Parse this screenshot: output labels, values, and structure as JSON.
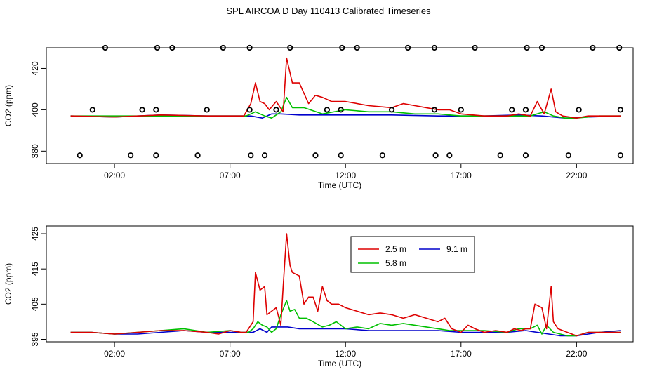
{
  "title": "SPL AIRCOA D  Day 110413  Calibrated Timeseries",
  "colors": {
    "2.5 m": "#dd0000",
    "5.8 m": "#00c000",
    "9.1 m": "#0000cc",
    "markers": "#000000"
  },
  "chart_data": [
    {
      "type": "line",
      "name": "top-panel",
      "xlabel": "Time (UTC)",
      "ylabel": "CO2 (ppm)",
      "x_ticks": [
        "02:00",
        "07:00",
        "12:00",
        "17:00",
        "22:00"
      ],
      "x_tick_hours": [
        2,
        7,
        12,
        17,
        22
      ],
      "xlim": [
        -0.95,
        24.45
      ],
      "y_ticks": [
        380,
        400,
        420
      ],
      "ylim": [
        374,
        430
      ],
      "grid": false,
      "series": [
        {
          "name": "2.5 m",
          "color": "#dd0000",
          "x": [
            0.1,
            2.0,
            4.0,
            6.0,
            7.0,
            7.6,
            7.9,
            8.1,
            8.3,
            8.5,
            8.7,
            9.0,
            9.3,
            9.45,
            9.7,
            10.0,
            10.4,
            10.7,
            11.0,
            11.4,
            12.0,
            13.0,
            14.0,
            14.5,
            15.0,
            15.5,
            16.0,
            16.5,
            17.0,
            18.0,
            19.0,
            19.5,
            20.0,
            20.3,
            20.6,
            20.9,
            21.1,
            21.4,
            22.0,
            22.5,
            23.0,
            23.9
          ],
          "y": [
            397,
            396.5,
            397.5,
            397,
            397,
            397,
            403,
            413,
            404,
            403,
            400,
            404,
            399,
            425,
            413,
            413,
            403,
            407,
            406,
            404,
            404,
            402,
            401,
            403,
            402,
            401,
            400,
            400,
            398,
            397,
            397,
            398,
            397,
            404,
            398,
            410,
            399,
            397,
            396,
            397,
            397,
            397
          ]
        },
        {
          "name": "5.8 m",
          "color": "#00c000",
          "x": [
            0.1,
            3.0,
            6.0,
            7.0,
            7.7,
            8.1,
            8.5,
            8.8,
            9.2,
            9.45,
            9.7,
            10.2,
            11.0,
            12.0,
            13.0,
            14.0,
            15.0,
            16.0,
            17.0,
            18.0,
            19.0,
            20.0,
            20.6,
            21.0,
            21.5,
            22.0,
            23.0,
            23.9
          ],
          "y": [
            397,
            397,
            397,
            397,
            397,
            399,
            397,
            396,
            399,
            406,
            401,
            401,
            398,
            400,
            399,
            399,
            398,
            398,
            397,
            397,
            397,
            397,
            399,
            397,
            396,
            396,
            397,
            397
          ]
        },
        {
          "name": "9.1 m",
          "color": "#0000cc",
          "x": [
            0.1,
            2.0,
            4.0,
            6.0,
            7.0,
            7.9,
            8.4,
            8.8,
            9.2,
            10.0,
            12.0,
            14.0,
            16.0,
            18.0,
            19.5,
            20.5,
            21.5,
            22.5,
            23.9
          ],
          "y": [
            397,
            396.5,
            397.5,
            397,
            397,
            397,
            396,
            398,
            398,
            397.5,
            397.5,
            397.5,
            397,
            397,
            397.5,
            397,
            396,
            396.5,
            397
          ]
        }
      ],
      "markers": {
        "symbol": "open-circle",
        "points": [
          {
            "x": 1.6,
            "y": 430
          },
          {
            "x": 3.85,
            "y": 430
          },
          {
            "x": 4.5,
            "y": 430
          },
          {
            "x": 6.7,
            "y": 430
          },
          {
            "x": 7.85,
            "y": 430
          },
          {
            "x": 9.6,
            "y": 430
          },
          {
            "x": 11.85,
            "y": 430
          },
          {
            "x": 12.5,
            "y": 430
          },
          {
            "x": 14.7,
            "y": 430
          },
          {
            "x": 15.85,
            "y": 430
          },
          {
            "x": 17.6,
            "y": 430
          },
          {
            "x": 19.85,
            "y": 430
          },
          {
            "x": 20.5,
            "y": 430
          },
          {
            "x": 22.7,
            "y": 430
          },
          {
            "x": 23.85,
            "y": 430
          },
          {
            "x": 1.05,
            "y": 400
          },
          {
            "x": 3.2,
            "y": 400
          },
          {
            "x": 3.8,
            "y": 400
          },
          {
            "x": 6.0,
            "y": 400
          },
          {
            "x": 7.85,
            "y": 400
          },
          {
            "x": 9.0,
            "y": 400
          },
          {
            "x": 11.2,
            "y": 400
          },
          {
            "x": 11.8,
            "y": 400
          },
          {
            "x": 14.0,
            "y": 400
          },
          {
            "x": 15.85,
            "y": 400
          },
          {
            "x": 17.0,
            "y": 400
          },
          {
            "x": 19.2,
            "y": 400
          },
          {
            "x": 19.8,
            "y": 400
          },
          {
            "x": 22.1,
            "y": 400
          },
          {
            "x": 23.9,
            "y": 400
          },
          {
            "x": 0.5,
            "y": 378
          },
          {
            "x": 2.7,
            "y": 378
          },
          {
            "x": 3.8,
            "y": 378
          },
          {
            "x": 5.6,
            "y": 378
          },
          {
            "x": 7.9,
            "y": 378
          },
          {
            "x": 8.5,
            "y": 378
          },
          {
            "x": 10.7,
            "y": 378
          },
          {
            "x": 11.8,
            "y": 378
          },
          {
            "x": 13.6,
            "y": 378
          },
          {
            "x": 15.9,
            "y": 378
          },
          {
            "x": 16.5,
            "y": 378
          },
          {
            "x": 18.7,
            "y": 378
          },
          {
            "x": 19.8,
            "y": 378
          },
          {
            "x": 21.65,
            "y": 378
          },
          {
            "x": 23.9,
            "y": 378
          }
        ]
      }
    },
    {
      "type": "line",
      "name": "bottom-panel",
      "xlabel": "Time (UTC)",
      "ylabel": "CO2 (ppm)",
      "x_ticks": [
        "02:00",
        "07:00",
        "12:00",
        "17:00",
        "22:00"
      ],
      "x_tick_hours": [
        2,
        7,
        12,
        17,
        22
      ],
      "xlim": [
        -0.95,
        24.45
      ],
      "y_ticks": [
        395,
        405,
        415,
        425
      ],
      "ylim": [
        394.3,
        427.2
      ],
      "grid": false,
      "legend": {
        "placement": "top-center",
        "entries": [
          "2.5 m",
          "9.1 m",
          "5.8 m"
        ]
      },
      "series": [
        {
          "name": "2.5 m",
          "color": "#dd0000",
          "x": [
            0.1,
            1.0,
            2.0,
            3.0,
            4.0,
            5.0,
            6.0,
            6.5,
            7.0,
            7.5,
            7.7,
            8.0,
            8.1,
            8.3,
            8.5,
            8.6,
            8.8,
            9.0,
            9.2,
            9.3,
            9.45,
            9.6,
            9.7,
            10.0,
            10.2,
            10.4,
            10.6,
            10.8,
            11.0,
            11.2,
            11.4,
            11.7,
            12.0,
            12.5,
            13.0,
            13.5,
            14.0,
            14.5,
            15.0,
            15.5,
            16.0,
            16.3,
            16.6,
            17.0,
            17.3,
            17.6,
            18.0,
            18.5,
            19.0,
            19.3,
            19.6,
            19.8,
            20.0,
            20.2,
            20.5,
            20.7,
            20.9,
            21.0,
            21.2,
            21.4,
            21.6,
            22.0,
            22.5,
            23.0,
            23.9
          ],
          "y": [
            397,
            397,
            396.5,
            397,
            397.5,
            397.5,
            397,
            396.5,
            397.5,
            397,
            397,
            400,
            414,
            409,
            410,
            402,
            403,
            404,
            399,
            410,
            425,
            416,
            414,
            413,
            405,
            407,
            407,
            403,
            410,
            406,
            405,
            405,
            404,
            403,
            402,
            402.5,
            402,
            401,
            402,
            401,
            400,
            401,
            398,
            397,
            399,
            398,
            397,
            397.5,
            397,
            398,
            397.5,
            398,
            398,
            405,
            404,
            398,
            410,
            400,
            398,
            397.5,
            397,
            396,
            397,
            397,
            397
          ]
        },
        {
          "name": "5.8 m",
          "color": "#00c000",
          "x": [
            0.1,
            1.0,
            2.0,
            3.0,
            4.0,
            5.0,
            6.0,
            7.0,
            7.5,
            7.8,
            8.0,
            8.2,
            8.4,
            8.6,
            8.8,
            9.0,
            9.2,
            9.45,
            9.6,
            9.8,
            10.0,
            10.3,
            10.6,
            11.0,
            11.3,
            11.6,
            12.0,
            12.5,
            13.0,
            13.5,
            14.0,
            14.5,
            15.0,
            15.5,
            16.0,
            16.5,
            17.0,
            17.5,
            18.0,
            19.0,
            19.5,
            20.0,
            20.3,
            20.5,
            20.7,
            21.0,
            21.3,
            21.6,
            22.0,
            22.5,
            23.0,
            23.9
          ],
          "y": [
            397,
            397,
            396.5,
            397,
            397.5,
            398,
            397,
            397.5,
            397,
            397,
            398,
            400,
            399,
            398.5,
            397,
            398,
            402,
            406,
            403,
            403.5,
            401,
            401,
            400,
            398.5,
            399,
            400,
            398,
            398.5,
            398,
            399.5,
            399,
            399.5,
            399,
            398.5,
            398,
            397.5,
            397.5,
            397.5,
            397.5,
            397,
            398,
            398,
            399,
            396.5,
            399,
            397,
            396.5,
            396,
            396,
            397,
            397,
            397
          ]
        },
        {
          "name": "9.1 m",
          "color": "#0000cc",
          "x": [
            0.1,
            1.0,
            2.0,
            3.0,
            4.0,
            5.0,
            6.0,
            7.0,
            7.5,
            8.0,
            8.3,
            8.6,
            8.8,
            9.0,
            9.5,
            10.0,
            11.0,
            12.0,
            13.0,
            14.0,
            15.0,
            16.0,
            17.0,
            18.0,
            19.0,
            19.8,
            20.3,
            20.8,
            21.3,
            22.0,
            22.5,
            23.0,
            23.9
          ],
          "y": [
            397,
            397,
            396.5,
            396.5,
            397,
            397.5,
            397,
            397,
            397,
            397,
            398,
            397,
            398.5,
            398.5,
            398.5,
            398,
            398,
            398,
            397.5,
            397.5,
            397.5,
            397.5,
            397,
            397,
            397,
            397.5,
            397,
            396.5,
            396,
            396,
            396.5,
            397,
            397.5
          ]
        }
      ]
    }
  ]
}
